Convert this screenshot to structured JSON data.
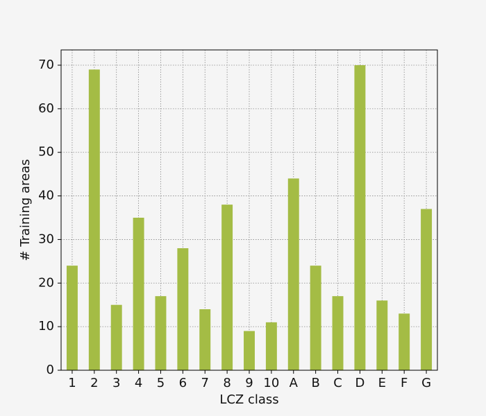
{
  "chart_data": {
    "type": "bar",
    "x_label": "LCZ class",
    "y_label": "# Training areas",
    "categories": [
      "1",
      "2",
      "3",
      "4",
      "5",
      "6",
      "7",
      "8",
      "9",
      "10",
      "A",
      "B",
      "C",
      "D",
      "E",
      "F",
      "G"
    ],
    "values": [
      24,
      69,
      15,
      35,
      17,
      28,
      14,
      38,
      9,
      11,
      44,
      24,
      17,
      70,
      16,
      13,
      37
    ],
    "color": "#a4bc45",
    "ylim": [
      0,
      73.5
    ],
    "yticks": [
      0,
      10,
      20,
      30,
      40,
      50,
      60,
      70
    ],
    "grid": true
  }
}
